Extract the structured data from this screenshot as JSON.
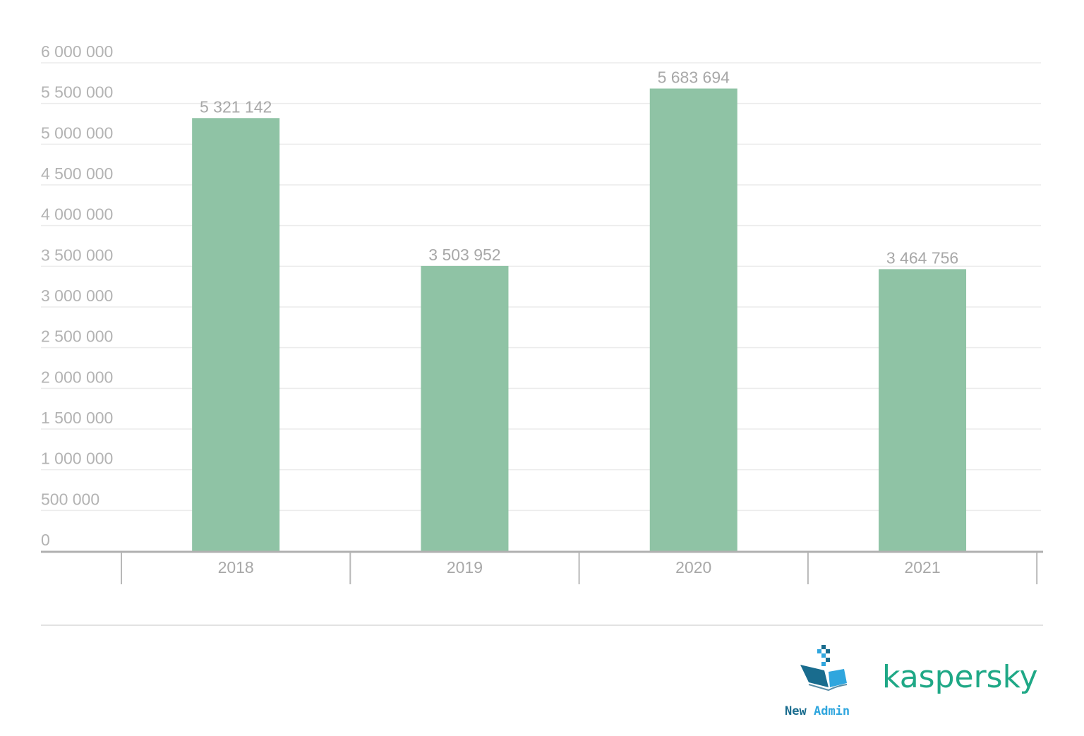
{
  "chart_data": {
    "type": "bar",
    "categories": [
      "2018",
      "2019",
      "2020",
      "2021"
    ],
    "values": [
      5321142,
      3503952,
      5683694,
      3464756
    ],
    "data_labels": [
      "5 321 142",
      "3 503 952",
      "5 683 694",
      "3 464 756"
    ],
    "ylim": [
      0,
      6000000
    ],
    "yticks": [
      0,
      500000,
      1000000,
      1500000,
      2000000,
      2500000,
      3000000,
      3500000,
      4000000,
      4500000,
      5000000,
      5500000,
      6000000
    ],
    "ytick_labels": [
      "0",
      "500 000",
      "1 000 000",
      "1 500 000",
      "2 000 000",
      "2 500 000",
      "3 000 000",
      "3 500 000",
      "4 000 000",
      "4 500 000",
      "5 000 000",
      "5 500 000",
      "6 000 000"
    ],
    "grid": true,
    "title": "",
    "xlabel": "",
    "ylabel": "",
    "bar_color": "#8fc3a5"
  },
  "logos": {
    "newadmin_word1": "New",
    "newadmin_word2": "Admin",
    "kaspersky": "kaspersky"
  }
}
